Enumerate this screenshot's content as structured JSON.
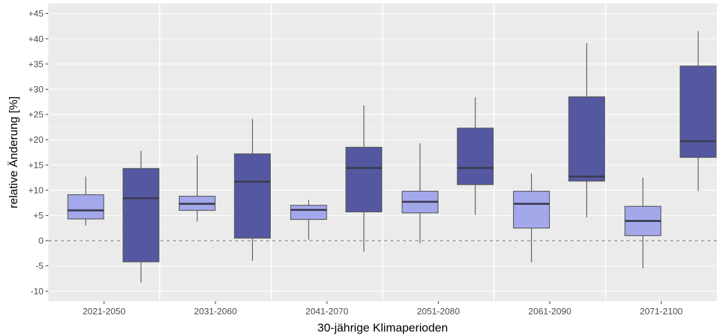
{
  "chart_data": {
    "type": "box",
    "xlabel": "30-jährige Klimaperioden",
    "ylabel": "relative Änderung [%]",
    "ylim": [
      -12,
      47
    ],
    "y_ticks": [
      -10,
      -5,
      0,
      5,
      10,
      15,
      20,
      25,
      30,
      35,
      40,
      45
    ],
    "y_tick_labels": [
      "-10",
      "-5",
      "0",
      "+5",
      "+10",
      "+15",
      "+20",
      "+25",
      "+30",
      "+35",
      "+40",
      "+45"
    ],
    "categories": [
      "2021-2050",
      "2031-2060",
      "2041-2070",
      "2051-2080",
      "2061-2090",
      "2071-2100"
    ],
    "reference_line": 0,
    "grid": true,
    "series": [
      {
        "color": "#a3a8eb",
        "boxes": [
          {
            "min": 3.0,
            "q1": 4.3,
            "median": 6.0,
            "q3": 9.1,
            "max": 12.7
          },
          {
            "min": 3.8,
            "q1": 6.0,
            "median": 7.3,
            "q3": 8.8,
            "max": 16.9
          },
          {
            "min": 0.2,
            "q1": 4.2,
            "median": 6.1,
            "q3": 7.0,
            "max": 8.1
          },
          {
            "min": -0.5,
            "q1": 5.5,
            "median": 7.7,
            "q3": 9.8,
            "max": 19.3
          },
          {
            "min": -4.3,
            "q1": 2.5,
            "median": 7.3,
            "q3": 9.8,
            "max": 13.3
          },
          {
            "min": -5.5,
            "q1": 1.0,
            "median": 3.9,
            "q3": 6.8,
            "max": 12.5
          }
        ]
      },
      {
        "color": "#5458a1",
        "boxes": [
          {
            "min": -8.3,
            "q1": -4.2,
            "median": 8.4,
            "q3": 14.3,
            "max": 17.8
          },
          {
            "min": -4.0,
            "q1": 0.5,
            "median": 11.7,
            "q3": 17.2,
            "max": 24.1
          },
          {
            "min": -2.2,
            "q1": 5.7,
            "median": 14.4,
            "q3": 18.5,
            "max": 26.8
          },
          {
            "min": 5.1,
            "q1": 11.1,
            "median": 14.4,
            "q3": 22.3,
            "max": 28.4
          },
          {
            "min": 4.6,
            "q1": 11.8,
            "median": 12.7,
            "q3": 28.5,
            "max": 39.1
          },
          {
            "min": 9.8,
            "q1": 16.5,
            "median": 19.7,
            "q3": 34.6,
            "max": 41.5
          }
        ]
      }
    ]
  }
}
